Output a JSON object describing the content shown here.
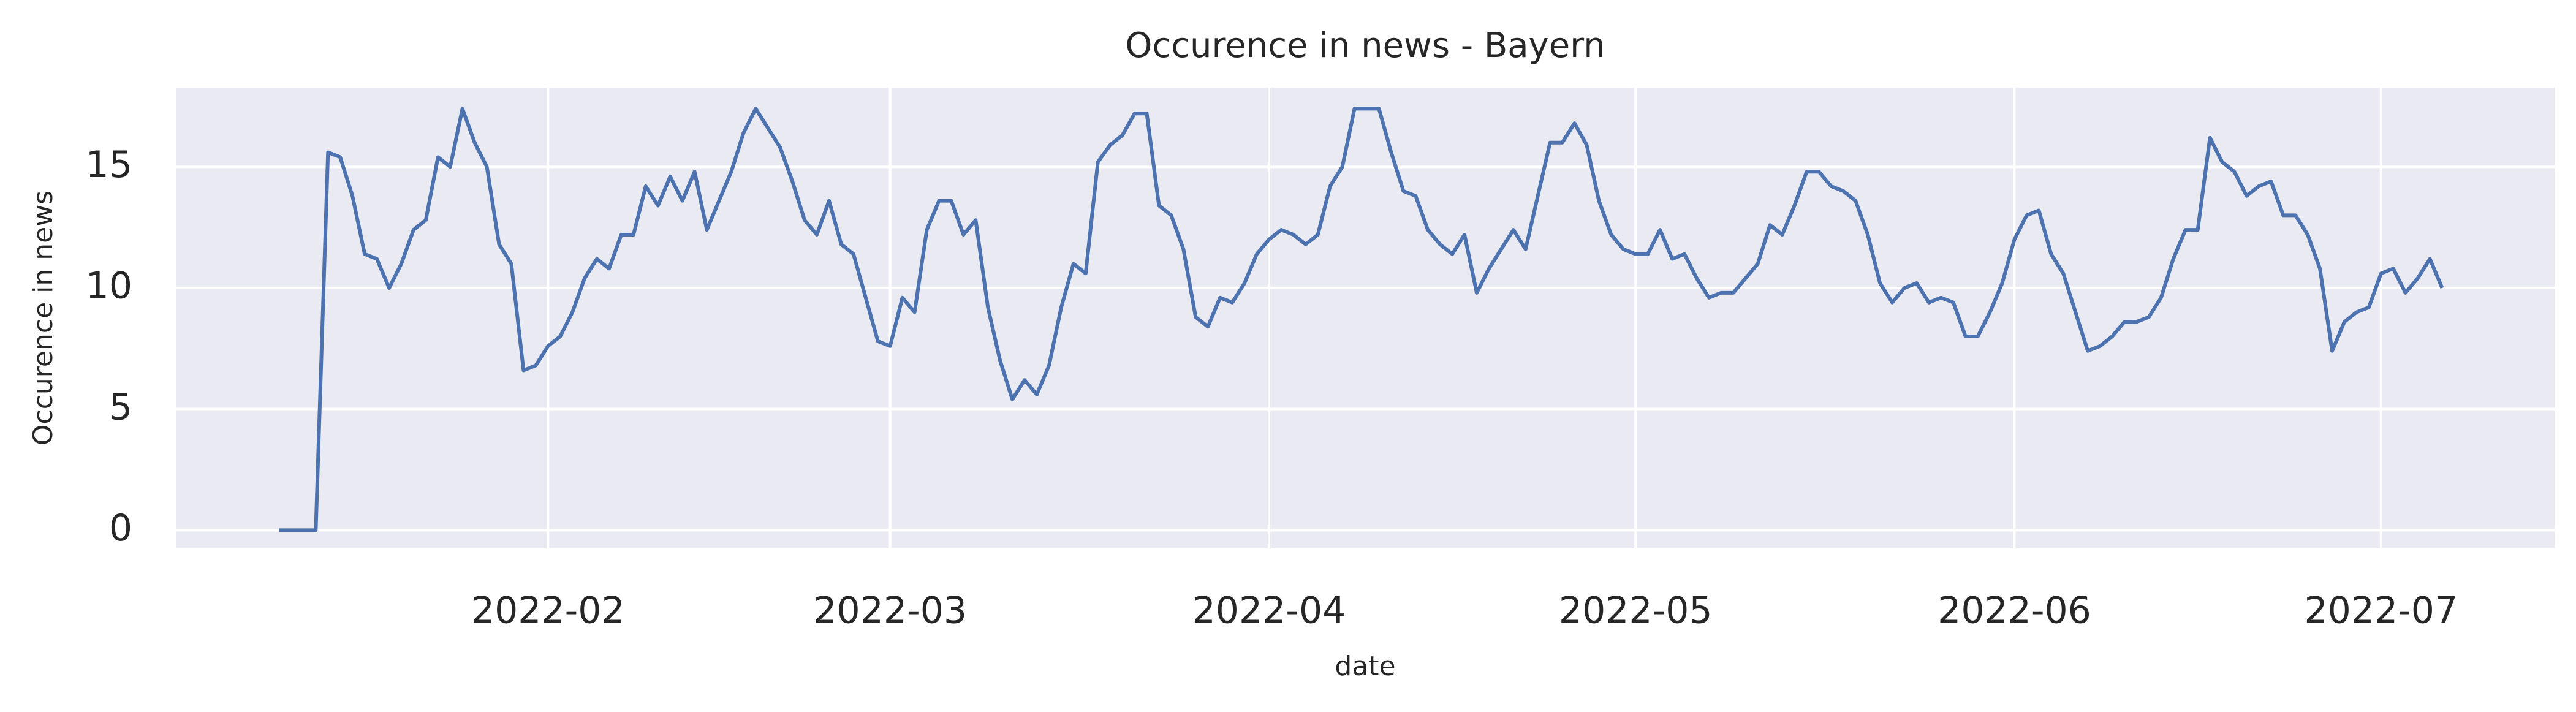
{
  "chart_data": {
    "type": "line",
    "title": "Occurence in news - Bayern",
    "x_label": "date",
    "y_label": "Occurence in news",
    "series": [
      {
        "name": "Bayern",
        "color": "#4c72b0",
        "values": [
          0,
          0,
          0,
          0,
          15.6,
          15.4,
          13.8,
          11.4,
          11.2,
          10.0,
          11.0,
          12.4,
          12.8,
          15.4,
          15.0,
          17.4,
          16.0,
          15.0,
          11.8,
          11.0,
          6.6,
          6.8,
          7.6,
          8.0,
          9.0,
          10.4,
          11.2,
          10.8,
          12.2,
          12.2,
          14.2,
          13.4,
          14.6,
          13.6,
          14.8,
          12.4,
          13.6,
          14.8,
          16.4,
          17.4,
          16.6,
          15.8,
          14.4,
          12.8,
          12.2,
          13.6,
          11.8,
          11.4,
          9.6,
          7.8,
          7.6,
          9.6,
          9.0,
          12.4,
          13.6,
          13.6,
          12.2,
          12.8,
          9.2,
          7.0,
          5.4,
          6.2,
          5.6,
          6.8,
          9.2,
          11.0,
          10.6,
          15.2,
          15.9,
          16.3,
          17.2,
          17.2,
          13.4,
          13.0,
          11.6,
          8.8,
          8.4,
          9.6,
          9.4,
          10.2,
          11.4,
          12.0,
          12.4,
          12.2,
          11.8,
          12.2,
          14.2,
          15.0,
          17.4,
          17.4,
          17.4,
          15.6,
          14.0,
          13.8,
          12.4,
          11.8,
          11.4,
          12.2,
          9.8,
          10.8,
          11.6,
          12.4,
          11.6,
          13.8,
          16.0,
          16.0,
          16.8,
          15.9,
          13.6,
          12.2,
          11.6,
          11.4,
          11.4,
          12.4,
          11.2,
          11.4,
          10.4,
          9.6,
          9.8,
          9.8,
          10.4,
          11.0,
          12.6,
          12.2,
          13.4,
          14.8,
          14.8,
          14.2,
          14.0,
          13.6,
          12.2,
          10.2,
          9.4,
          10.0,
          10.2,
          9.4,
          9.6,
          9.4,
          8.0,
          8.0,
          9.0,
          10.2,
          12.0,
          13.0,
          13.2,
          11.4,
          10.6,
          9.0,
          7.4,
          7.6,
          8.0,
          8.6,
          8.6,
          8.8,
          9.6,
          11.2,
          12.4,
          12.4,
          16.2,
          15.2,
          14.8,
          13.8,
          14.2,
          14.4,
          13.0,
          13.0,
          12.2,
          10.8,
          7.4,
          8.6,
          9.0,
          9.2,
          10.6,
          10.8,
          9.8,
          10.4,
          11.2,
          10.0
        ]
      }
    ],
    "xlim": [
      -8.4,
      186.2
    ],
    "xticks": [
      {
        "value": 22,
        "label": "2022-02"
      },
      {
        "value": 50,
        "label": "2022-03"
      },
      {
        "value": 81,
        "label": "2022-04"
      },
      {
        "value": 111,
        "label": "2022-05"
      },
      {
        "value": 142,
        "label": "2022-06"
      },
      {
        "value": 172,
        "label": "2022-07"
      }
    ],
    "ylim": [
      -0.75,
      18.27
    ],
    "yticks": [
      0,
      5,
      10,
      15
    ],
    "grid": true,
    "background": "#eaeaf2"
  }
}
